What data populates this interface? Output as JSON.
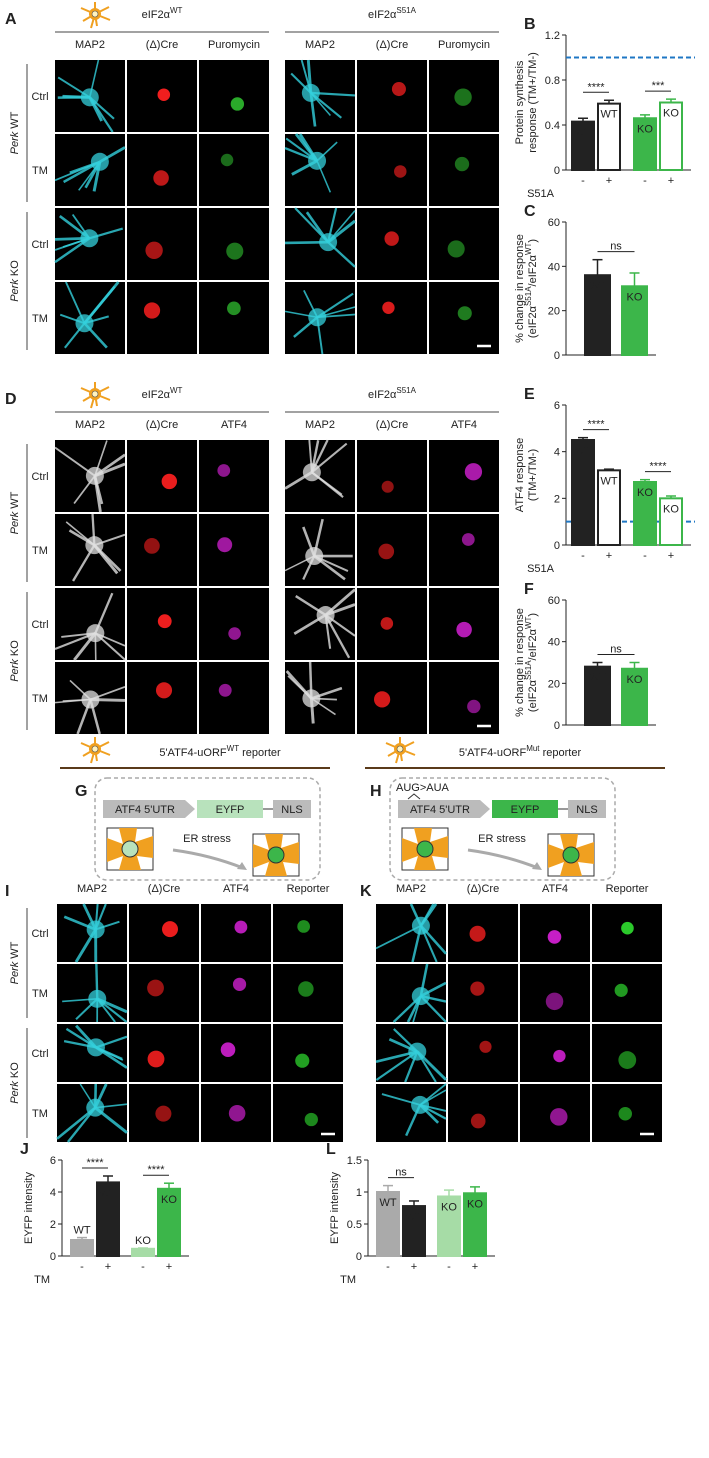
{
  "image_panels": [
    {
      "letter": "A",
      "headers": [
        {
          "text": "eIF2α",
          "sup": "WT"
        },
        {
          "text": "eIF2α",
          "sup": "S51A"
        }
      ],
      "channels": [
        "MAP2",
        "(Δ)Cre",
        "Puromycin"
      ],
      "channel_colors": [
        "#2ab7c4",
        "#e8262a",
        "#3cb64a"
      ],
      "image_colors": [
        "#34d0dc",
        "#ff2020",
        "#30c030"
      ],
      "rows": [
        "Ctrl",
        "TM",
        "Ctrl",
        "TM"
      ],
      "groups": [
        [
          "Perk",
          " WT"
        ],
        [
          "Perk",
          " KO"
        ]
      ]
    },
    {
      "letter": "D",
      "headers": [
        {
          "text": "eIF2α",
          "sup": "WT"
        },
        {
          "text": "eIF2α",
          "sup": "S51A"
        }
      ],
      "channels": [
        "MAP2",
        "(Δ)Cre",
        "ATF4"
      ],
      "channel_colors": [
        "#333333",
        "#e8262a",
        "#e020e0"
      ],
      "image_colors": [
        "#e0e0e0",
        "#ff2020",
        "#d020d0"
      ],
      "rows": [
        "Ctrl",
        "TM",
        "Ctrl",
        "TM"
      ],
      "groups": [
        [
          "Perk",
          " WT"
        ],
        [
          "Perk",
          " KO"
        ]
      ]
    },
    {
      "letter": "I",
      "channels": [
        "MAP2",
        "(Δ)Cre",
        "ATF4",
        "Reporter"
      ],
      "channel_colors": [
        "#2ab7c4",
        "#e8262a",
        "#e020e0",
        "#3cb64a"
      ],
      "image_colors": [
        "#34d0dc",
        "#ff2020",
        "#d020d0",
        "#30e030"
      ],
      "rows": [
        "Ctrl",
        "TM",
        "Ctrl",
        "TM"
      ],
      "groups": [
        [
          "Perk",
          " WT"
        ],
        [
          "Perk",
          " KO"
        ]
      ]
    },
    {
      "letter": "K",
      "channels": [
        "MAP2",
        "(Δ)Cre",
        "ATF4",
        "Reporter"
      ],
      "channel_colors": [
        "#2ab7c4",
        "#e8262a",
        "#e020e0",
        "#3cb64a"
      ],
      "image_colors": [
        "#34d0dc",
        "#ff2020",
        "#d020d0",
        "#30e030"
      ]
    }
  ],
  "schematics": [
    {
      "letter": "G",
      "header": {
        "text": "5'ATF4-uORF",
        "sup": "WT",
        "after": " reporter"
      },
      "boxes": [
        "ATF4 5'UTR",
        "EYFP",
        "NLS"
      ],
      "eyfp_color": "#b8e2bc",
      "stress": "ER stress"
    },
    {
      "letter": "H",
      "header": {
        "text": "5'ATF4-uORF",
        "sup": "Mut",
        "after": " reporter"
      },
      "mutation": "AUG>AUA",
      "boxes": [
        "ATF4 5'UTR",
        "EYFP",
        "NLS"
      ],
      "eyfp_color": "#3cb64a",
      "stress": "ER stress"
    }
  ],
  "chart_data": [
    {
      "type": "bar",
      "letter": "B",
      "ylabel": [
        "Protein synthesis",
        "response (TM+/TM-)"
      ],
      "categories": [
        "-",
        "+",
        "-",
        "+"
      ],
      "xlabel": "S51A",
      "values": [
        0.43,
        0.59,
        0.46,
        0.6
      ],
      "errors": [
        0.03,
        0.03,
        0.03,
        0.03
      ],
      "bar_labels": [
        "WT",
        "WT",
        "KO",
        "KO"
      ],
      "fills": [
        "#222222",
        "#ffffff",
        "#3cb64a",
        "#ffffff"
      ],
      "strokes": [
        "#222222",
        "#222222",
        "#3cb64a",
        "#3cb64a"
      ],
      "label_colors": [
        "#ffffff",
        "#222222",
        "#ffffff",
        "#222222"
      ],
      "ylim": [
        0,
        1.2
      ],
      "yticks": [
        0,
        0.4,
        0.8,
        1.2
      ],
      "ref_line": 1,
      "ref_color": "#1f77c4",
      "annotations": [
        {
          "text": "****",
          "bars": [
            0,
            1
          ]
        },
        {
          "text": "***",
          "bars": [
            2,
            3
          ]
        }
      ]
    },
    {
      "type": "bar",
      "letter": "C",
      "ylabel": [
        "% change in response",
        [
          "(eIF2α",
          "S51A",
          "/eIF2α",
          "WT",
          ")"
        ]
      ],
      "values": [
        36,
        31
      ],
      "errors": [
        7,
        6
      ],
      "bar_labels": [
        "WT",
        "KO"
      ],
      "fills": [
        "#222222",
        "#3cb64a"
      ],
      "strokes": [
        "#222222",
        "#3cb64a"
      ],
      "label_colors": [
        "#ffffff",
        "#ffffff"
      ],
      "ylim": [
        0,
        60
      ],
      "yticks": [
        0,
        20,
        40,
        60
      ],
      "annotations": [
        {
          "text": "ns",
          "bars": [
            0,
            1
          ]
        }
      ]
    },
    {
      "type": "bar",
      "letter": "E",
      "ylabel": [
        "ATF4 response",
        "(TM+/TM-)"
      ],
      "categories": [
        "-",
        "+",
        "-",
        "+"
      ],
      "xlabel": "S51A",
      "values": [
        4.5,
        3.2,
        2.7,
        2.0
      ],
      "errors": [
        0.1,
        0.05,
        0.1,
        0.1
      ],
      "bar_labels": [
        "WT",
        "WT",
        "KO",
        "KO"
      ],
      "fills": [
        "#222222",
        "#ffffff",
        "#3cb64a",
        "#ffffff"
      ],
      "strokes": [
        "#222222",
        "#222222",
        "#3cb64a",
        "#3cb64a"
      ],
      "label_colors": [
        "#ffffff",
        "#222222",
        "#ffffff",
        "#222222"
      ],
      "ylim": [
        0,
        6
      ],
      "yticks": [
        0,
        2,
        4,
        6
      ],
      "ref_line": 1,
      "ref_color": "#1f77c4",
      "annotations": [
        {
          "text": "****",
          "bars": [
            0,
            1
          ]
        },
        {
          "text": "****",
          "bars": [
            2,
            3
          ]
        }
      ]
    },
    {
      "type": "bar",
      "letter": "F",
      "ylabel": [
        "% change in response",
        [
          "(eIF2α",
          "S51A",
          "/eIF2α",
          "WT",
          ")"
        ]
      ],
      "values": [
        28,
        27
      ],
      "errors": [
        2,
        3
      ],
      "bar_labels": [
        "WT",
        "KO"
      ],
      "fills": [
        "#222222",
        "#3cb64a"
      ],
      "strokes": [
        "#222222",
        "#3cb64a"
      ],
      "label_colors": [
        "#ffffff",
        "#ffffff"
      ],
      "ylim": [
        0,
        60
      ],
      "yticks": [
        0,
        20,
        40,
        60
      ],
      "annotations": [
        {
          "text": "ns",
          "bars": [
            0,
            1
          ]
        }
      ]
    },
    {
      "type": "bar",
      "letter": "J",
      "ylabel": [
        "EYFP intensity"
      ],
      "categories": [
        "-",
        "+",
        "-",
        "+"
      ],
      "xlabel": "TM",
      "values": [
        1.0,
        4.6,
        0.45,
        4.2
      ],
      "errors": [
        0.15,
        0.4,
        0.05,
        0.35
      ],
      "bar_labels": [
        "WT",
        "WT",
        "KO",
        "KO"
      ],
      "fills": [
        "#aaaaaa",
        "#222222",
        "#a6dca6",
        "#3cb64a"
      ],
      "strokes": [
        "#aaaaaa",
        "#222222",
        "#a6dca6",
        "#3cb64a"
      ],
      "label_colors": [
        "#222222",
        "#ffffff",
        "#222222",
        "#ffffff"
      ],
      "ylim": [
        0,
        6
      ],
      "yticks": [
        0,
        2,
        4,
        6
      ],
      "annotations": [
        {
          "text": "****",
          "bars": [
            0,
            1
          ]
        },
        {
          "text": "****",
          "bars": [
            2,
            3
          ]
        }
      ]
    },
    {
      "type": "bar",
      "letter": "L",
      "ylabel": [
        "EYFP intensity"
      ],
      "categories": [
        "-",
        "+",
        "-",
        "+"
      ],
      "xlabel": "TM",
      "values": [
        1.0,
        0.78,
        0.93,
        0.98
      ],
      "errors": [
        0.1,
        0.08,
        0.1,
        0.1
      ],
      "bar_labels": [
        "WT",
        "WT",
        "KO",
        "KO"
      ],
      "fills": [
        "#aaaaaa",
        "#222222",
        "#a6dca6",
        "#3cb64a"
      ],
      "strokes": [
        "#aaaaaa",
        "#222222",
        "#a6dca6",
        "#3cb64a"
      ],
      "label_colors": [
        "#222222",
        "#ffffff",
        "#222222",
        "#222222"
      ],
      "ylim": [
        0,
        1.5
      ],
      "yticks": [
        0,
        0.5,
        1,
        1.5
      ],
      "annotations": [
        {
          "text": "ns",
          "bars": [
            0,
            1
          ]
        }
      ]
    }
  ]
}
